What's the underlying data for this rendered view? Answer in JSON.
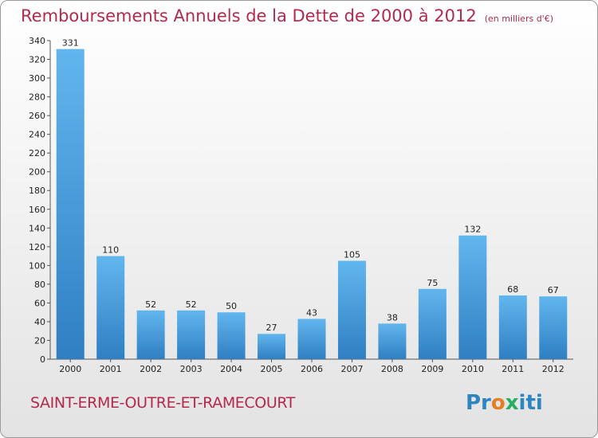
{
  "title": "Remboursements Annuels de la Dette de 2000 à 2012",
  "unit": "(en milliers d'€)",
  "commune": "SAINT-ERME-OUTRE-ET-RAMECOURT",
  "logo": {
    "p1": "Pr",
    "p2": "o",
    "p3": "x",
    "p4": "iti"
  },
  "colors": {
    "title": "#b5294d",
    "bar_top": "#62b6ee",
    "bar_bottom": "#2f7fc2"
  },
  "chart_data": {
    "type": "bar",
    "categories": [
      "2000",
      "2001",
      "2002",
      "2003",
      "2004",
      "2005",
      "2006",
      "2007",
      "2008",
      "2009",
      "2010",
      "2011",
      "2012"
    ],
    "values": [
      331,
      110,
      52,
      52,
      50,
      27,
      43,
      105,
      38,
      75,
      132,
      68,
      67
    ],
    "ylim": [
      0,
      340
    ],
    "yticks": [
      0,
      20,
      40,
      60,
      80,
      100,
      120,
      140,
      160,
      180,
      200,
      220,
      240,
      260,
      280,
      300,
      320,
      340
    ],
    "grid": false,
    "legend": "none"
  }
}
